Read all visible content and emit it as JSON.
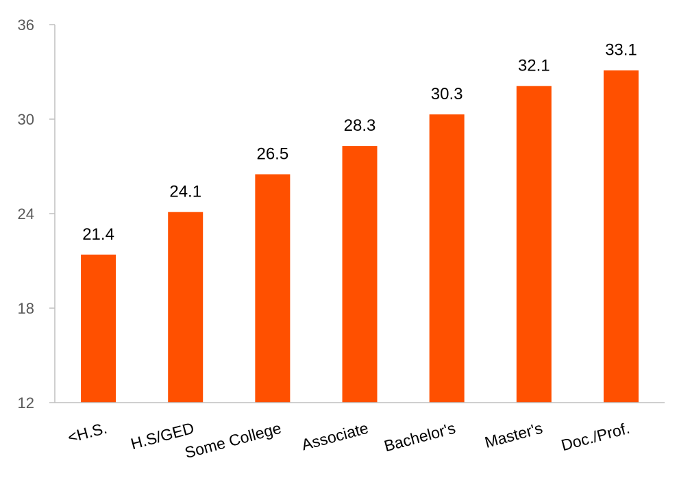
{
  "chart_data": {
    "type": "bar",
    "title": "",
    "xlabel": "",
    "ylabel": "",
    "categories": [
      "<H.S.",
      "H.S/GED",
      "Some College",
      "Associate",
      "Bachelor's",
      "Master's",
      "Doc./Prof."
    ],
    "values": [
      21.4,
      24.1,
      26.5,
      28.3,
      30.3,
      32.1,
      33.1
    ],
    "data_labels": [
      "21.4",
      "24.1",
      "26.5",
      "28.3",
      "30.3",
      "32.1",
      "33.1"
    ],
    "ylim": [
      12,
      36
    ],
    "yticks": [
      12,
      18,
      24,
      30,
      36
    ],
    "ytick_labels": [
      "12",
      "18",
      "24",
      "30",
      "36"
    ],
    "grid": false,
    "legend": "none",
    "colors": {
      "bar": "#FF5000",
      "axis": "#BFBFBF",
      "tick_text": "#595959"
    }
  }
}
